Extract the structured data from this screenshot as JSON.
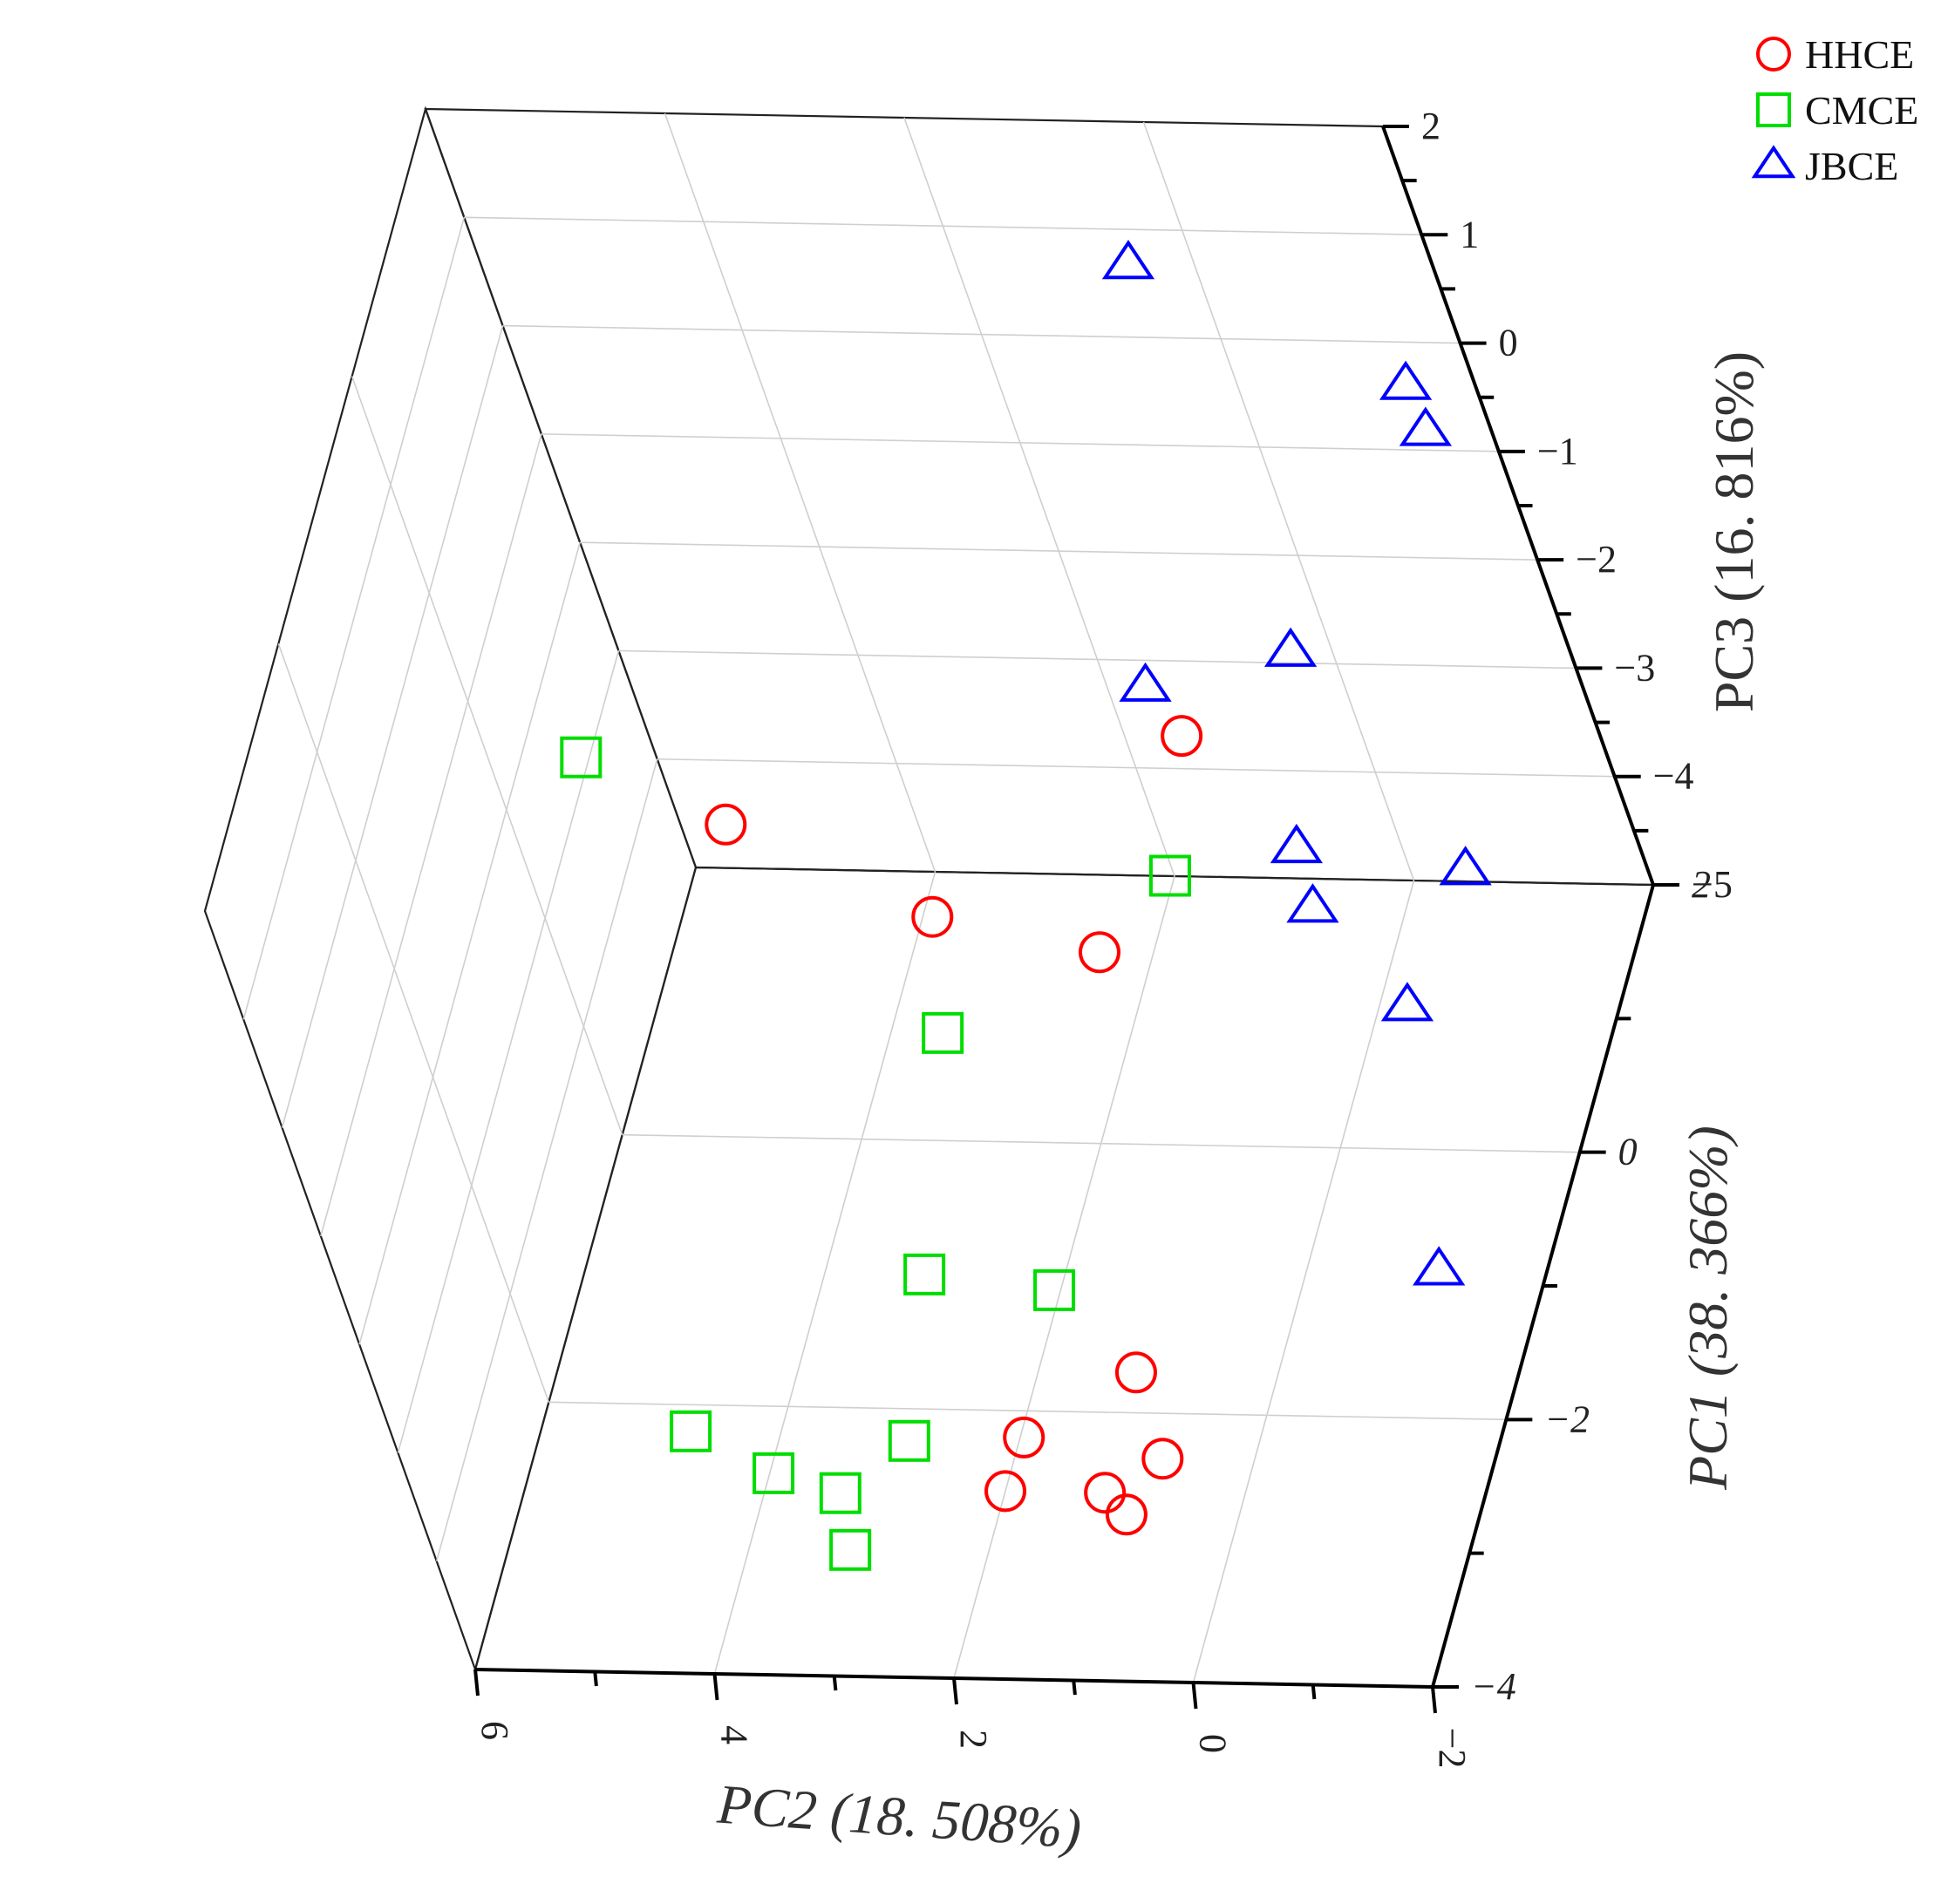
{
  "chart_data": {
    "type": "scatter",
    "chart_kind": "3d-scatter",
    "title": "",
    "axes": {
      "pc1": {
        "label": "PC1 (38. 366%)",
        "range": [
          -4,
          2
        ],
        "ticks": [
          2,
          0,
          -2,
          -4
        ],
        "tick_labels": [
          "2",
          "0",
          "−2",
          "−4"
        ]
      },
      "pc2": {
        "label": "PC2 (18. 508%)",
        "range": [
          -2,
          6
        ],
        "ticks": [
          6,
          4,
          2,
          0,
          -2
        ],
        "tick_labels": [
          "6",
          "4",
          "2",
          "0",
          "−2"
        ]
      },
      "pc3": {
        "label": "PC3 (16. 816%)",
        "range": [
          -5,
          2
        ],
        "ticks": [
          2,
          1,
          0,
          -1,
          -2,
          -3,
          -4,
          -5
        ],
        "tick_labels": [
          "2",
          "1",
          "0",
          "−1",
          "−2",
          "−3",
          "−4",
          "−5"
        ]
      }
    },
    "grid": true,
    "legend_position": "top-right",
    "series": [
      {
        "name": "HHCE",
        "marker": "circle",
        "color": "#ff0000",
        "points": [
          {
            "pc2": 4.2,
            "pc1": 0.0,
            "pc3": -2.1
          },
          {
            "pc2": 2.1,
            "pc1": -0.9,
            "pc3": -1.8
          },
          {
            "pc2": 0.8,
            "pc1": -0.9,
            "pc3": -2.1
          },
          {
            "pc2": 0.1,
            "pc1": 0.0,
            "pc3": -1.2
          },
          {
            "pc2": 0.9,
            "pc1": -2.1,
            "pc3": -4.5
          },
          {
            "pc2": 2.0,
            "pc1": -2.6,
            "pc3": -5.0
          },
          {
            "pc2": 1.4,
            "pc1": -3.0,
            "pc3": -4.0
          },
          {
            "pc2": 0.6,
            "pc1": -3.4,
            "pc3": -4.0
          },
          {
            "pc2": 0.2,
            "pc1": -3.8,
            "pc3": -3.7
          },
          {
            "pc2": -0.2,
            "pc1": -3.7,
            "pc3": -3.3
          }
        ]
      },
      {
        "name": "CMCE",
        "marker": "square",
        "color": "#00dd00",
        "points": [
          {
            "pc2": 5.5,
            "pc1": 0.4,
            "pc3": -2.0
          },
          {
            "pc2": 3.0,
            "pc1": 0.0,
            "pc3": -4.0
          },
          {
            "pc2": 0.9,
            "pc1": 0.4,
            "pc3": -3.0
          },
          {
            "pc2": 2.6,
            "pc1": -1.8,
            "pc3": -4.0
          },
          {
            "pc2": 1.2,
            "pc1": -2.3,
            "pc3": -3.5
          },
          {
            "pc2": 2.8,
            "pc1": -2.4,
            "pc3": -4.8
          },
          {
            "pc2": 3.4,
            "pc1": -3.3,
            "pc3": -4.0
          },
          {
            "pc2": 3.9,
            "pc1": -3.4,
            "pc3": -3.5
          },
          {
            "pc2": 2.7,
            "pc1": -3.7,
            "pc3": -4.2
          },
          {
            "pc2": 2.4,
            "pc1": -4.0,
            "pc3": -3.3
          }
        ]
      },
      {
        "name": "JBCE",
        "marker": "triangle",
        "color": "#0000ff",
        "points": [
          {
            "pc2": 0.2,
            "pc1": 1.5,
            "pc3": 1.3
          },
          {
            "pc2": -1.7,
            "pc1": 1.6,
            "pc3": 0.1
          },
          {
            "pc2": -1.8,
            "pc1": 1.5,
            "pc3": -0.2
          },
          {
            "pc2": 0.4,
            "pc1": 0.2,
            "pc3": -1.0
          },
          {
            "pc2": -0.5,
            "pc1": 0.8,
            "pc3": -1.4
          },
          {
            "pc2": -1.6,
            "pc1": 0.4,
            "pc3": -2.9
          },
          {
            "pc2": -0.6,
            "pc1": -0.1,
            "pc3": -2.1
          },
          {
            "pc2": -0.7,
            "pc1": -0.3,
            "pc3": -2.4
          },
          {
            "pc2": -1.2,
            "pc1": -0.3,
            "pc3": -3.3
          },
          {
            "pc2": -1.1,
            "pc1": -0.9,
            "pc3": -5.0
          }
        ]
      }
    ]
  }
}
